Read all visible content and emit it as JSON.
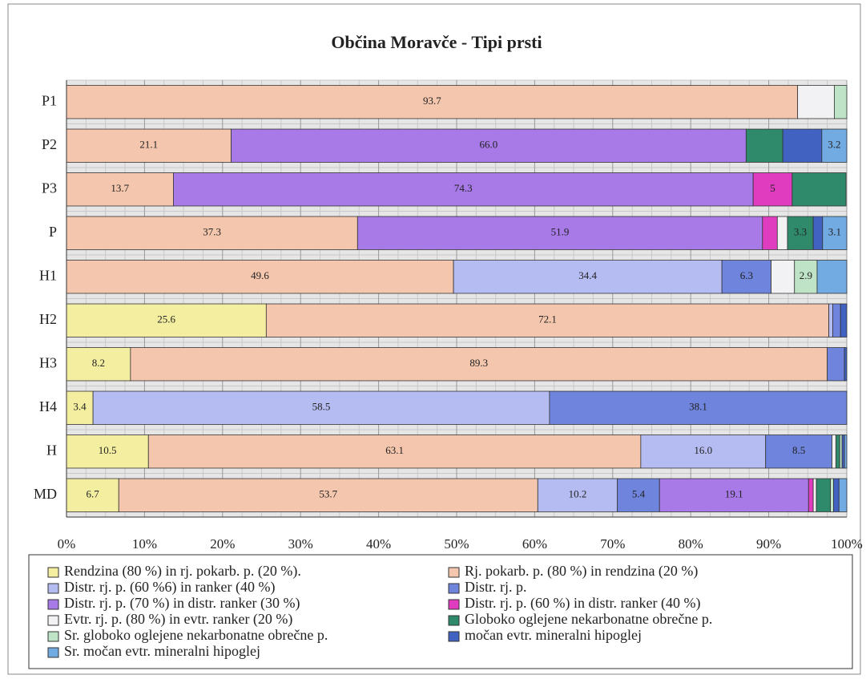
{
  "chart_data": {
    "type": "bar",
    "orientation": "horizontal",
    "stacked": true,
    "title": "Občina Moravče - Tipi prsti",
    "categories": [
      "P1",
      "P2",
      "P3",
      "P",
      "H1",
      "H2",
      "H3",
      "H4",
      "H",
      "MD"
    ],
    "xlim": [
      0,
      100
    ],
    "xticks": [
      {
        "value": 0,
        "label": "0%"
      },
      {
        "value": 10,
        "label": "10%"
      },
      {
        "value": 20,
        "label": "20%"
      },
      {
        "value": 30,
        "label": "30%"
      },
      {
        "value": 40,
        "label": "40%"
      },
      {
        "value": 50,
        "label": "50%"
      },
      {
        "value": 60,
        "label": "60%"
      },
      {
        "value": 70,
        "label": "70%"
      },
      {
        "value": 80,
        "label": "80%"
      },
      {
        "value": 90,
        "label": "90%"
      },
      {
        "value": 100,
        "label": "100%"
      }
    ],
    "grid": true,
    "series": [
      {
        "name": "Rendzina (80 %) in rj. pokarb. p. (20 %).",
        "color": "#f3eea0",
        "values": [
          0,
          0,
          0,
          0,
          0,
          25.6,
          8.2,
          3.4,
          10.5,
          6.7
        ],
        "value_labels": [
          null,
          null,
          null,
          null,
          null,
          "25.6",
          "8.2",
          "3.4",
          "10.5",
          "6.7"
        ]
      },
      {
        "name": "Rj. pokarb. p. (80 %) in rendzina (20 %)",
        "color": "#f4c6ad",
        "values": [
          93.7,
          21.1,
          13.7,
          37.3,
          49.6,
          72.1,
          89.3,
          0,
          63.1,
          53.7
        ],
        "value_labels": [
          "93.7",
          "21.1",
          "13.7",
          "37.3",
          "49.6",
          "72.1",
          "89.3",
          null,
          "63.1",
          "53.7"
        ]
      },
      {
        "name": "Distr. rj. p. (60 %6) in ranker (40 %)",
        "color": "#b4bcf2",
        "values": [
          0,
          0,
          0,
          0,
          34.4,
          0.5,
          0,
          58.5,
          16.0,
          10.2
        ],
        "value_labels": [
          null,
          null,
          null,
          null,
          "34.4",
          null,
          null,
          "58.5",
          "16.0",
          "10.2"
        ]
      },
      {
        "name": "Distr. rj. p.",
        "color": "#6f84dc",
        "values": [
          0,
          0,
          0,
          0,
          6.3,
          1.0,
          2.2,
          38.1,
          8.5,
          5.4
        ],
        "value_labels": [
          null,
          null,
          null,
          null,
          "6.3",
          null,
          null,
          "38.1",
          "8.5",
          "5.4"
        ]
      },
      {
        "name": "Distr. rj. p. (70 %) in distr. ranker (30 %)",
        "color": "#a77ae8",
        "values": [
          0,
          66.0,
          74.3,
          51.9,
          0,
          0,
          0,
          0,
          0,
          19.1
        ],
        "value_labels": [
          null,
          "66.0",
          "74.3",
          "51.9",
          null,
          null,
          null,
          null,
          null,
          "19.1"
        ]
      },
      {
        "name": "Distr. rj. p. (60 %) in distr. ranker (40 %)",
        "color": "#e03cc0",
        "values": [
          0,
          0,
          5.0,
          1.9,
          0,
          0,
          0,
          0,
          0,
          0.6
        ],
        "value_labels": [
          null,
          null,
          "5",
          null,
          null,
          null,
          null,
          null,
          null,
          null
        ]
      },
      {
        "name": "Evtr. rj. p. (80 %) in evtr. ranker (20 %)",
        "color": "#f2f2f4",
        "values": [
          4.7,
          0,
          0,
          1.3,
          3.0,
          0,
          0,
          0,
          0.5,
          0.4
        ],
        "value_labels": [
          null,
          null,
          null,
          null,
          null,
          null,
          null,
          null,
          null,
          null
        ]
      },
      {
        "name": "Globoko oglejene nekarbonatne obrečne p.",
        "color": "#2f8a6c",
        "values": [
          0,
          4.7,
          6.9,
          3.3,
          0,
          0,
          0,
          0,
          0.5,
          1.8
        ],
        "value_labels": [
          null,
          null,
          null,
          "3.3",
          null,
          null,
          null,
          null,
          null,
          null
        ]
      },
      {
        "name": "Sr. globoko oglejene nekarbonatne obrečne p.",
        "color": "#bfe3c6",
        "values": [
          1.6,
          0,
          0,
          0,
          2.9,
          0,
          0,
          0,
          0.3,
          0.4
        ],
        "value_labels": [
          null,
          null,
          null,
          null,
          "2.9",
          null,
          null,
          null,
          null,
          null
        ]
      },
      {
        "name": "močan evtr. mineralni hipoglej",
        "color": "#4262c2",
        "values": [
          0,
          5.0,
          0,
          1.2,
          0,
          0.8,
          0.3,
          0,
          0.3,
          0.7
        ],
        "value_labels": [
          null,
          null,
          null,
          null,
          null,
          null,
          null,
          null,
          null,
          null
        ]
      },
      {
        "name": "Sr. močan evtr. mineralni hipoglej",
        "color": "#72aae2",
        "values": [
          0,
          3.2,
          0,
          3.1,
          3.8,
          0,
          0,
          0,
          0.3,
          1.0
        ],
        "value_labels": [
          null,
          "3.2",
          null,
          "3.1",
          null,
          null,
          null,
          null,
          null,
          null
        ]
      }
    ]
  }
}
